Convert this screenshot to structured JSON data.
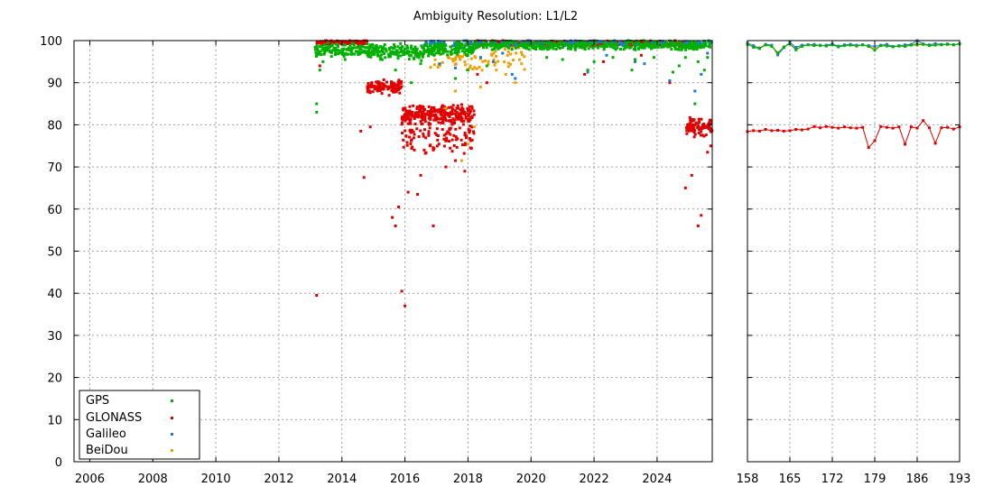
{
  "chart_data": [
    {
      "type": "scatter",
      "title": "Ambiguity Resolution: L1/L2",
      "xlim": [
        2005.5,
        2025.75
      ],
      "ylim": [
        0,
        100
      ],
      "xticks": [
        "2006",
        "2008",
        "2010",
        "2012",
        "2014",
        "2016",
        "2018",
        "2020",
        "2022",
        "2024"
      ],
      "yticks": [
        "0",
        "10",
        "20",
        "30",
        "40",
        "50",
        "60",
        "70",
        "80",
        "90",
        "100"
      ],
      "grid": true,
      "legend_position": "bottom-left",
      "series": [
        {
          "name": "GPS",
          "color": "#00b000",
          "segments": [
            {
              "x0": 2013.15,
              "x1": 2014.8,
              "center": 97.8,
              "spread": 1.2,
              "n": 130
            },
            {
              "x0": 2014.8,
              "x1": 2016.7,
              "center": 97.3,
              "spread": 1.4,
              "n": 160
            },
            {
              "x0": 2016.7,
              "x1": 2018.2,
              "center": 98.0,
              "spread": 1.3,
              "n": 140
            },
            {
              "x0": 2018.2,
              "x1": 2025.75,
              "center": 98.9,
              "spread": 0.8,
              "n": 420
            }
          ],
          "outliers": [
            [
              2013.2,
              83
            ],
            [
              2013.2,
              85
            ],
            [
              2013.3,
              93
            ],
            [
              2013.4,
              95
            ],
            [
              2014.1,
              95.5
            ],
            [
              2015.7,
              93
            ],
            [
              2016.2,
              90
            ],
            [
              2016.5,
              94.5
            ],
            [
              2017.6,
              91
            ],
            [
              2018.0,
              93
            ],
            [
              2018.6,
              94
            ],
            [
              2020.5,
              96
            ],
            [
              2021.0,
              95.5
            ],
            [
              2021.8,
              93
            ],
            [
              2022.0,
              95
            ],
            [
              2022.6,
              96
            ],
            [
              2023.2,
              93
            ],
            [
              2023.3,
              95.5
            ],
            [
              2023.9,
              96
            ],
            [
              2024.5,
              92.5
            ],
            [
              2024.7,
              94
            ],
            [
              2024.9,
              96
            ],
            [
              2025.2,
              85
            ],
            [
              2025.3,
              95
            ],
            [
              2025.5,
              93
            ],
            [
              2025.6,
              96
            ]
          ]
        },
        {
          "name": "GLONASS",
          "color": "#e00000",
          "segments": [
            {
              "x0": 2013.2,
              "x1": 2014.8,
              "center": 99.6,
              "spread": 0.4,
              "n": 120
            },
            {
              "x0": 2014.8,
              "x1": 2015.9,
              "center": 89.0,
              "spread": 1.1,
              "n": 110
            },
            {
              "x0": 2015.9,
              "x1": 2018.2,
              "center": 82.5,
              "spread": 1.6,
              "n": 260
            },
            {
              "x0": 2015.9,
              "x1": 2018.2,
              "center": 77.5,
              "spread": 3.0,
              "n": 110
            },
            {
              "x0": 2018.2,
              "x1": 2024.9,
              "center": 99.3,
              "spread": 0.5,
              "n": 360
            },
            {
              "x0": 2024.9,
              "x1": 2025.75,
              "center": 79.5,
              "spread": 1.6,
              "n": 90
            }
          ],
          "outliers": [
            [
              2013.2,
              39.5
            ],
            [
              2013.3,
              94
            ],
            [
              2014.6,
              78.5
            ],
            [
              2014.7,
              67.5
            ],
            [
              2014.9,
              79.5
            ],
            [
              2015.2,
              89.5
            ],
            [
              2015.5,
              87
            ],
            [
              2015.6,
              58
            ],
            [
              2015.7,
              56
            ],
            [
              2015.8,
              60.5
            ],
            [
              2015.9,
              40.5
            ],
            [
              2016.0,
              37
            ],
            [
              2016.1,
              64
            ],
            [
              2016.4,
              63.5
            ],
            [
              2016.5,
              68
            ],
            [
              2016.9,
              56
            ],
            [
              2017.3,
              70
            ],
            [
              2017.6,
              71.5
            ],
            [
              2017.9,
              69
            ],
            [
              2018.3,
              92
            ],
            [
              2018.6,
              90
            ],
            [
              2021.7,
              92
            ],
            [
              2024.4,
              90
            ],
            [
              2024.9,
              65
            ],
            [
              2025.1,
              68
            ],
            [
              2025.3,
              56
            ],
            [
              2025.4,
              58.5
            ],
            [
              2025.6,
              73.5
            ],
            [
              2025.7,
              75
            ],
            [
              2023.5,
              96.5
            ],
            [
              2022.3,
              95
            ]
          ]
        },
        {
          "name": "Galileo",
          "color": "#1e78dc",
          "segments": [
            {
              "x0": 2016.6,
              "x1": 2025.75,
              "center": 99.4,
              "spread": 0.5,
              "n": 240
            }
          ],
          "outliers": [
            [
              2017.1,
              94.5
            ],
            [
              2017.6,
              93.5
            ],
            [
              2018.4,
              96
            ],
            [
              2018.8,
              95
            ],
            [
              2019.1,
              97
            ],
            [
              2019.4,
              92
            ],
            [
              2019.5,
              91
            ],
            [
              2021.8,
              92.5
            ],
            [
              2022.4,
              96.5
            ],
            [
              2023.3,
              95
            ],
            [
              2023.6,
              94.5
            ],
            [
              2024.4,
              90.5
            ],
            [
              2025.2,
              88
            ],
            [
              2025.4,
              92
            ],
            [
              2025.6,
              97
            ]
          ]
        },
        {
          "name": "BeiDou",
          "color": "#f0a000",
          "segments": [
            {
              "x0": 2016.8,
              "x1": 2019.8,
              "center": 96.0,
              "spread": 2.4,
              "n": 90
            }
          ],
          "outliers": [
            [
              2017.3,
              84
            ],
            [
              2017.6,
              88
            ],
            [
              2017.8,
              71.5
            ],
            [
              2018.0,
              75.5
            ],
            [
              2018.2,
              79.5
            ],
            [
              2018.4,
              89
            ],
            [
              2018.9,
              93
            ],
            [
              2019.2,
              92
            ],
            [
              2019.5,
              90
            ],
            [
              2019.7,
              94.5
            ]
          ]
        }
      ]
    },
    {
      "type": "line",
      "xlim": [
        158,
        193
      ],
      "ylim": [
        0,
        100
      ],
      "xticks": [
        "158",
        "165",
        "172",
        "179",
        "186",
        "193"
      ],
      "grid": true,
      "series": [
        {
          "name": "GPS",
          "color": "#00b000",
          "x": [
            158,
            159,
            160,
            161,
            162,
            163,
            164,
            165,
            166,
            167,
            168,
            169,
            170,
            171,
            172,
            173,
            174,
            175,
            176,
            177,
            178,
            179,
            180,
            181,
            182,
            183,
            184,
            185,
            186,
            187,
            188,
            189,
            190,
            191,
            192,
            193
          ],
          "y": [
            99.2,
            98.4,
            98.1,
            99.0,
            98.6,
            97.0,
            98.5,
            99.2,
            97.8,
            98.6,
            99.0,
            98.8,
            98.9,
            98.7,
            99.0,
            98.5,
            98.8,
            98.9,
            98.7,
            99.0,
            98.6,
            97.7,
            98.8,
            98.7,
            98.5,
            98.7,
            98.6,
            98.9,
            99.0,
            99.1,
            98.8,
            98.9,
            99.0,
            99.1,
            99.0,
            99.2
          ]
        },
        {
          "name": "GLONASS",
          "color": "#e00000",
          "x": [
            158,
            159,
            160,
            161,
            162,
            163,
            164,
            165,
            166,
            167,
            168,
            169,
            170,
            171,
            172,
            173,
            174,
            175,
            176,
            177,
            178,
            179,
            180,
            181,
            182,
            183,
            184,
            185,
            186,
            187,
            188,
            189,
            190,
            191,
            192,
            193
          ],
          "y": [
            78.4,
            78.6,
            78.5,
            78.9,
            78.6,
            78.7,
            78.5,
            78.6,
            78.9,
            78.8,
            79.0,
            79.6,
            79.3,
            79.6,
            79.4,
            79.2,
            79.5,
            79.3,
            79.2,
            79.4,
            74.6,
            76.2,
            79.6,
            79.4,
            79.2,
            79.5,
            75.4,
            79.5,
            79.2,
            81.0,
            79.3,
            75.6,
            79.3,
            79.4,
            79.0,
            79.5
          ]
        },
        {
          "name": "Galileo",
          "color": "#1e78dc",
          "x": [
            158,
            159,
            160,
            161,
            162,
            163,
            164,
            165,
            166,
            167,
            168,
            169,
            170,
            171,
            172,
            173,
            174,
            175,
            176,
            177,
            178,
            179,
            180,
            181,
            182,
            183,
            184,
            185,
            186,
            187,
            188,
            189,
            190,
            191,
            192,
            193
          ],
          "y": [
            99.4,
            98.8,
            98.2,
            99.1,
            98.9,
            96.6,
            98.3,
            99.6,
            98.4,
            98.9,
            99.0,
            99.1,
            98.8,
            98.9,
            99.2,
            98.7,
            99.0,
            99.1,
            98.9,
            99.0,
            98.8,
            98.6,
            98.9,
            99.1,
            98.6,
            98.8,
            99.0,
            99.1,
            100.0,
            99.2,
            99.0,
            99.3,
            99.1,
            99.2,
            99.0,
            99.3
          ]
        },
        {
          "name": "BeiDou",
          "color": "#f0a000",
          "x": [
            158,
            159,
            160,
            161,
            162,
            163,
            164,
            165,
            166,
            167,
            168,
            169,
            170,
            171,
            172,
            173,
            174,
            175,
            176,
            177,
            178,
            179,
            180,
            181,
            182,
            183,
            184,
            185,
            186,
            187,
            188,
            189,
            190,
            191,
            192,
            193
          ],
          "y": [
            99.0,
            98.5,
            98.3,
            98.9,
            98.7,
            97.2,
            98.4,
            99.3,
            98.0,
            98.7,
            99.0,
            98.9,
            98.8,
            98.8,
            99.1,
            98.6,
            98.9,
            99.0,
            98.8,
            99.0,
            98.7,
            98.0,
            98.8,
            98.9,
            98.6,
            98.7,
            98.8,
            99.0,
            99.3,
            99.1,
            98.9,
            99.0,
            99.0,
            99.1,
            99.0,
            99.2
          ]
        }
      ]
    }
  ]
}
